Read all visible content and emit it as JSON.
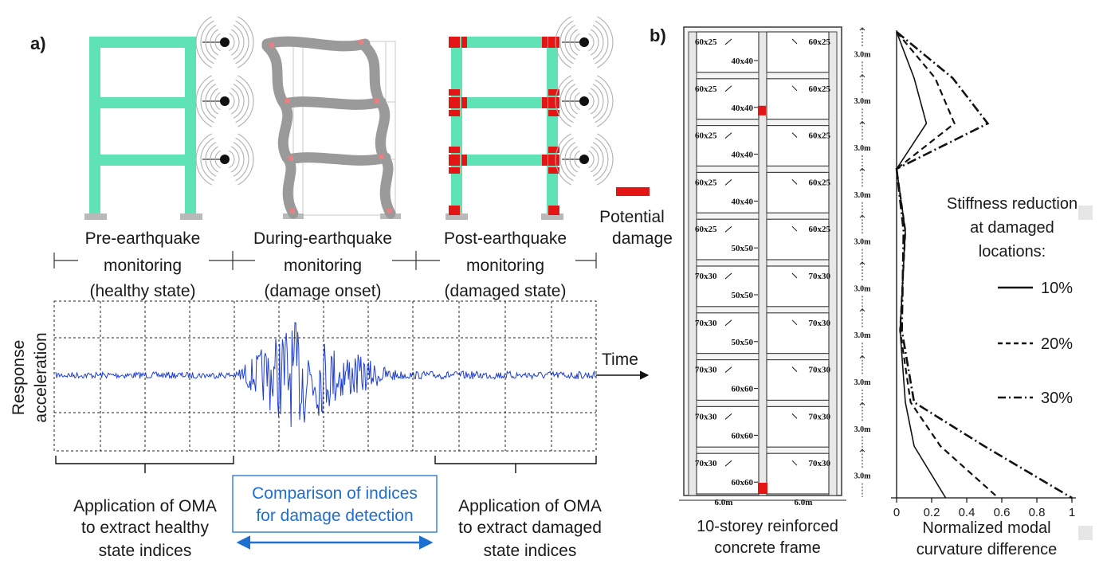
{
  "panel_a": {
    "label": "a)",
    "stages": [
      {
        "line1": "Pre-earthquake",
        "line2": "monitoring",
        "line3": "(healthy state)"
      },
      {
        "line1": "During-earthquake",
        "line2": "monitoring",
        "line3": "(damage onset)"
      },
      {
        "line1": "Post-earthquake",
        "line2": "monitoring",
        "line3": "(damaged state)"
      }
    ],
    "legend_damage": {
      "line1": "Potential",
      "line2": "damage"
    },
    "y_axis": {
      "line1": "Response",
      "line2": "acceleration"
    },
    "x_axis": "Time",
    "left_caption": [
      "Application of OMA",
      "to extract healthy",
      "state indices"
    ],
    "middle_caption": [
      "Comparison of indices",
      "for damage detection"
    ],
    "right_caption": [
      "Application of OMA",
      "to extract damaged",
      "state indices"
    ],
    "colors": {
      "frame": "#5ee2b6",
      "deformed": "#9a9a9a",
      "damage": "#e31515",
      "signal": "#1f3fcf",
      "caption": "#1d6fd0"
    }
  },
  "panel_b": {
    "label": "b)",
    "frame_caption": [
      "10-storey reinforced",
      "concrete frame"
    ],
    "storey_height": "3.0m",
    "bay_width": "6.0m",
    "storeys": [
      {
        "beam": "60x25",
        "col": "40x40"
      },
      {
        "beam": "60x25",
        "col": "40x40"
      },
      {
        "beam": "60x25",
        "col": "40x40"
      },
      {
        "beam": "60x25",
        "col": "40x40"
      },
      {
        "beam": "60x25",
        "col": "50x50"
      },
      {
        "beam": "70x30",
        "col": "50x50"
      },
      {
        "beam": "70x30",
        "col": "50x50"
      },
      {
        "beam": "70x30",
        "col": "60x60"
      },
      {
        "beam": "70x30",
        "col": "60x60"
      },
      {
        "beam": "70x30",
        "col": "60x60"
      }
    ],
    "legend_title": [
      "Stiffness reduction",
      "at damaged",
      "locations:"
    ]
  },
  "chart_data": {
    "type": "line",
    "xlabel": "Normalized modal curvature difference",
    "ylabel": "",
    "xlim": [
      0,
      1
    ],
    "xticks": [
      "0",
      "0.2",
      "0.4",
      "0.6",
      "0.8",
      "1"
    ],
    "orientation": "vertical-profile",
    "y_positions": [
      "top",
      "mid-1",
      "storey-2",
      "storey-3",
      "mid-4",
      "storey-7",
      "storey-8",
      "mid-9",
      "bottom"
    ],
    "series": [
      {
        "name": "10%",
        "dash": "solid",
        "values": [
          0.0,
          0.1,
          0.17,
          0.0,
          0.05,
          0.02,
          0.05,
          0.1,
          0.28
        ]
      },
      {
        "name": "20%",
        "dash": "dashed",
        "values": [
          0.0,
          0.22,
          0.33,
          0.0,
          0.05,
          0.02,
          0.08,
          0.25,
          0.58
        ]
      },
      {
        "name": "30%",
        "dash": "dashdot",
        "values": [
          0.0,
          0.32,
          0.52,
          0.0,
          0.04,
          0.03,
          0.1,
          0.5,
          1.0
        ]
      }
    ]
  }
}
